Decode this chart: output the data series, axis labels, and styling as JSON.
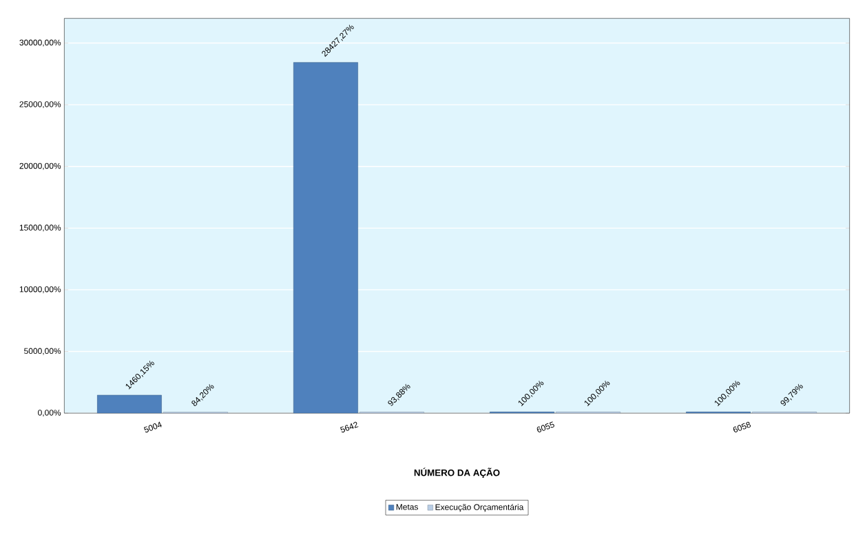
{
  "chart_data": {
    "type": "bar",
    "xlabel": "**NÚMERO DA AÇÃO**",
    "categories": [
      "5004",
      "5642",
      "6055",
      "6058"
    ],
    "series": [
      {
        "name": "Metas",
        "color": "#4f81bd",
        "values": [
          1460.15,
          28427.27,
          100.0,
          100.0
        ],
        "value_labels": [
          "1460,15%",
          "28427,27%",
          "100,00%",
          "100,00%"
        ]
      },
      {
        "name": "Execução Orçamentária",
        "color": "#b9cde5",
        "values": [
          84.2,
          93.88,
          100.0,
          99.79
        ],
        "value_labels": [
          "84,20%",
          "93,88%",
          "100,00%",
          "99,79%"
        ]
      }
    ],
    "ylim": [
      0,
      32000
    ],
    "yticks": [
      {
        "value": 0,
        "label": "0,00%"
      },
      {
        "value": 5000,
        "label": "5000,00%"
      },
      {
        "value": 10000,
        "label": "10000,00%"
      },
      {
        "value": 15000,
        "label": "15000,00%"
      },
      {
        "value": 20000,
        "label": "20000,00%"
      },
      {
        "value": 25000,
        "label": "25000,00%"
      },
      {
        "value": 30000,
        "label": "30000,00%"
      }
    ],
    "grid": "y",
    "legend": "bottom"
  }
}
